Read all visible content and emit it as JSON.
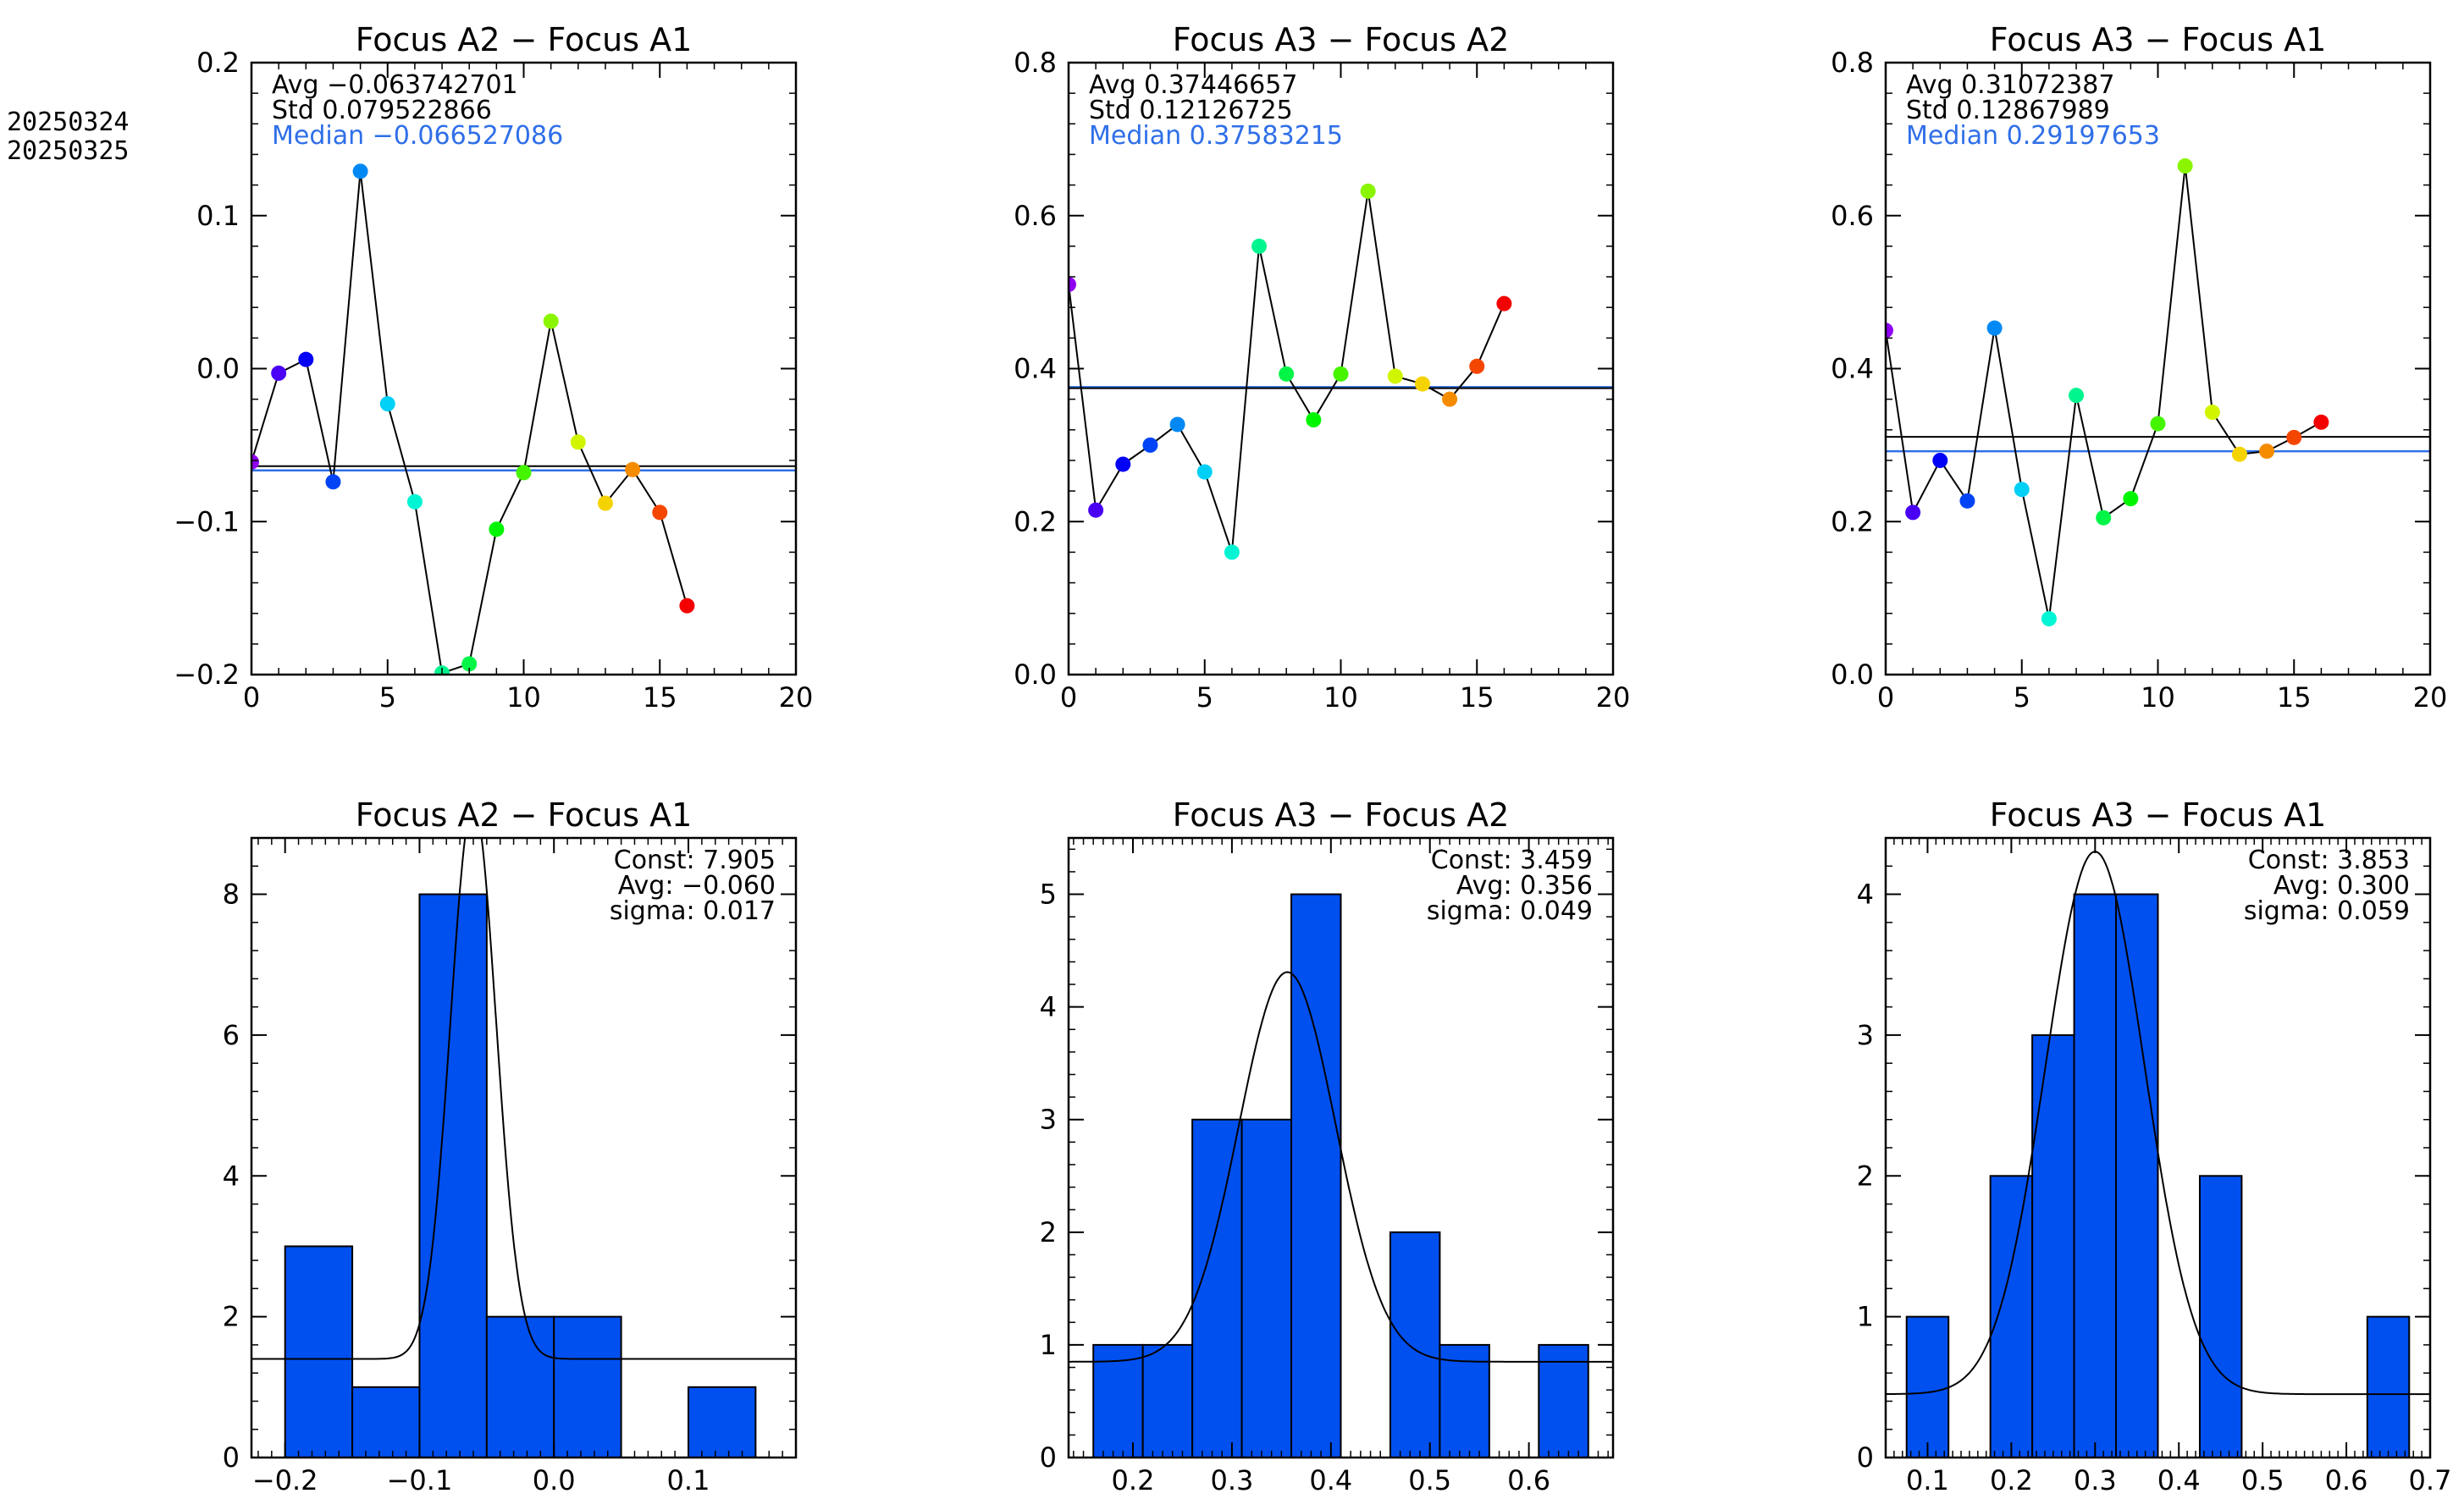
{
  "dates": [
    "20250324",
    "20250325"
  ],
  "colors": {
    "axis": "#000000",
    "avg_line": "#000000",
    "median_line": "#2f6fe8",
    "median_text": "#2f6fe8",
    "bar_fill": "#0050f0",
    "bar_edge": "#000000"
  },
  "chart_data": [
    {
      "type": "line",
      "title": "Focus A2 − Focus A1",
      "x": [
        0,
        1,
        2,
        3,
        4,
        5,
        6,
        7,
        8,
        9,
        10,
        11,
        12,
        13,
        14,
        15,
        16
      ],
      "y": [
        -0.061,
        -0.003,
        0.006,
        -0.074,
        0.129,
        -0.023,
        -0.087,
        -0.199,
        -0.193,
        -0.105,
        -0.068,
        0.031,
        -0.048,
        -0.088,
        -0.066,
        -0.094,
        -0.155
      ],
      "xlim": [
        0,
        20
      ],
      "ylim": [
        -0.2,
        0.2
      ],
      "xticks": [
        0,
        5,
        10,
        15,
        20
      ],
      "yticks": [
        -0.2,
        -0.1,
        0.0,
        0.1,
        0.2
      ],
      "xtick_labels": [
        "0",
        "5",
        "10",
        "15",
        "20"
      ],
      "ytick_labels": [
        "−0.2",
        "−0.1",
        "0.0",
        "0.1",
        "0.2"
      ],
      "avg": -0.063742701,
      "median": -0.066527086,
      "stats": [
        {
          "label": "Avg",
          "value": "−0.063742701",
          "color": "#000000"
        },
        {
          "label": "Std",
          "value": "0.079522866",
          "color": "#000000"
        },
        {
          "label": "Median",
          "value": "−0.066527086",
          "color": "#2f6fe8"
        }
      ]
    },
    {
      "type": "line",
      "title": "Focus A3 − Focus A2",
      "x": [
        0,
        1,
        2,
        3,
        4,
        5,
        6,
        7,
        8,
        9,
        10,
        11,
        12,
        13,
        14,
        15,
        16
      ],
      "y": [
        0.51,
        0.215,
        0.275,
        0.3,
        0.327,
        0.265,
        0.16,
        0.56,
        0.393,
        0.333,
        0.393,
        0.632,
        0.39,
        0.38,
        0.36,
        0.403,
        0.485
      ],
      "xlim": [
        0,
        20
      ],
      "ylim": [
        0.0,
        0.8
      ],
      "xticks": [
        0,
        5,
        10,
        15,
        20
      ],
      "yticks": [
        0.0,
        0.2,
        0.4,
        0.6,
        0.8
      ],
      "xtick_labels": [
        "0",
        "5",
        "10",
        "15",
        "20"
      ],
      "ytick_labels": [
        "0.0",
        "0.2",
        "0.4",
        "0.6",
        "0.8"
      ],
      "avg": 0.37446657,
      "median": 0.37583215,
      "stats": [
        {
          "label": "Avg",
          "value": "0.37446657",
          "color": "#000000"
        },
        {
          "label": "Std",
          "value": "0.12126725",
          "color": "#000000"
        },
        {
          "label": "Median",
          "value": "0.37583215",
          "color": "#2f6fe8"
        }
      ]
    },
    {
      "type": "line",
      "title": "Focus A3 − Focus A1",
      "x": [
        0,
        1,
        2,
        3,
        4,
        5,
        6,
        7,
        8,
        9,
        10,
        11,
        12,
        13,
        14,
        15,
        16
      ],
      "y": [
        0.45,
        0.212,
        0.28,
        0.227,
        0.453,
        0.242,
        0.073,
        0.365,
        0.205,
        0.23,
        0.328,
        0.665,
        0.343,
        0.288,
        0.292,
        0.31,
        0.33
      ],
      "xlim": [
        0,
        20
      ],
      "ylim": [
        0.0,
        0.8
      ],
      "xticks": [
        0,
        5,
        10,
        15,
        20
      ],
      "yticks": [
        0.0,
        0.2,
        0.4,
        0.6,
        0.8
      ],
      "xtick_labels": [
        "0",
        "5",
        "10",
        "15",
        "20"
      ],
      "ytick_labels": [
        "0.0",
        "0.2",
        "0.4",
        "0.6",
        "0.8"
      ],
      "avg": 0.31072387,
      "median": 0.29197653,
      "stats": [
        {
          "label": "Avg",
          "value": "0.31072387",
          "color": "#000000"
        },
        {
          "label": "Std",
          "value": "0.12867989",
          "color": "#000000"
        },
        {
          "label": "Median",
          "value": "0.29197653",
          "color": "#2f6fe8"
        }
      ]
    },
    {
      "type": "bar",
      "title": "Focus A2 − Focus A1",
      "bin_edges": [
        -0.2,
        -0.15,
        -0.1,
        -0.05,
        0.0,
        0.05,
        0.1,
        0.15
      ],
      "counts": [
        3,
        1,
        8,
        2,
        2,
        0,
        1
      ],
      "xlim": [
        -0.225,
        0.18
      ],
      "ylim": [
        0,
        8.8
      ],
      "xticks": [
        -0.2,
        -0.1,
        0.0,
        0.1
      ],
      "yticks": [
        0,
        2,
        4,
        6,
        8
      ],
      "xtick_labels": [
        "−0.2",
        "−0.1",
        "0.0",
        "0.1"
      ],
      "ytick_labels": [
        "0",
        "2",
        "4",
        "6",
        "8"
      ],
      "fit": {
        "const": 7.905,
        "avg": -0.06,
        "sigma": 0.017,
        "baseline": 1.4
      },
      "fit_labels": [
        {
          "label": "Const:",
          "value": "7.905"
        },
        {
          "label": "Avg:",
          "value": "−0.060"
        },
        {
          "label": "sigma:",
          "value": "0.017"
        }
      ]
    },
    {
      "type": "bar",
      "title": "Focus A3 − Focus A2",
      "bin_edges": [
        0.16,
        0.21,
        0.26,
        0.31,
        0.36,
        0.41,
        0.46,
        0.51,
        0.56,
        0.61,
        0.66
      ],
      "counts": [
        1,
        1,
        3,
        3,
        5,
        0,
        2,
        1,
        0,
        1
      ],
      "xlim": [
        0.135,
        0.685
      ],
      "ylim": [
        0,
        5.5
      ],
      "xticks": [
        0.2,
        0.3,
        0.4,
        0.5,
        0.6
      ],
      "yticks": [
        0,
        1,
        2,
        3,
        4,
        5
      ],
      "xtick_labels": [
        "0.2",
        "0.3",
        "0.4",
        "0.5",
        "0.6"
      ],
      "ytick_labels": [
        "0",
        "1",
        "2",
        "3",
        "4",
        "5"
      ],
      "fit": {
        "const": 3.459,
        "avg": 0.356,
        "sigma": 0.049,
        "baseline": 0.85
      },
      "fit_labels": [
        {
          "label": "Const:",
          "value": "3.459"
        },
        {
          "label": "Avg:",
          "value": "0.356"
        },
        {
          "label": "sigma:",
          "value": "0.049"
        }
      ]
    },
    {
      "type": "bar",
      "title": "Focus A3 − Focus A1",
      "bin_edges": [
        0.075,
        0.125,
        0.175,
        0.225,
        0.275,
        0.325,
        0.375,
        0.425,
        0.475,
        0.525,
        0.575,
        0.625,
        0.675
      ],
      "counts": [
        1,
        0,
        2,
        3,
        4,
        4,
        0,
        2,
        0,
        0,
        0,
        1
      ],
      "xlim": [
        0.05,
        0.7
      ],
      "ylim": [
        0,
        4.4
      ],
      "xticks": [
        0.1,
        0.2,
        0.3,
        0.4,
        0.5,
        0.6,
        0.7
      ],
      "yticks": [
        0,
        1,
        2,
        3,
        4
      ],
      "xtick_labels": [
        "0.1",
        "0.2",
        "0.3",
        "0.4",
        "0.5",
        "0.6",
        "0.7"
      ],
      "ytick_labels": [
        "0",
        "1",
        "2",
        "3",
        "4"
      ],
      "fit": {
        "const": 3.853,
        "avg": 0.3,
        "sigma": 0.059,
        "baseline": 0.45
      },
      "fit_labels": [
        {
          "label": "Const:",
          "value": "3.853"
        },
        {
          "label": "Avg:",
          "value": "0.300"
        },
        {
          "label": "sigma:",
          "value": "0.059"
        }
      ]
    }
  ]
}
